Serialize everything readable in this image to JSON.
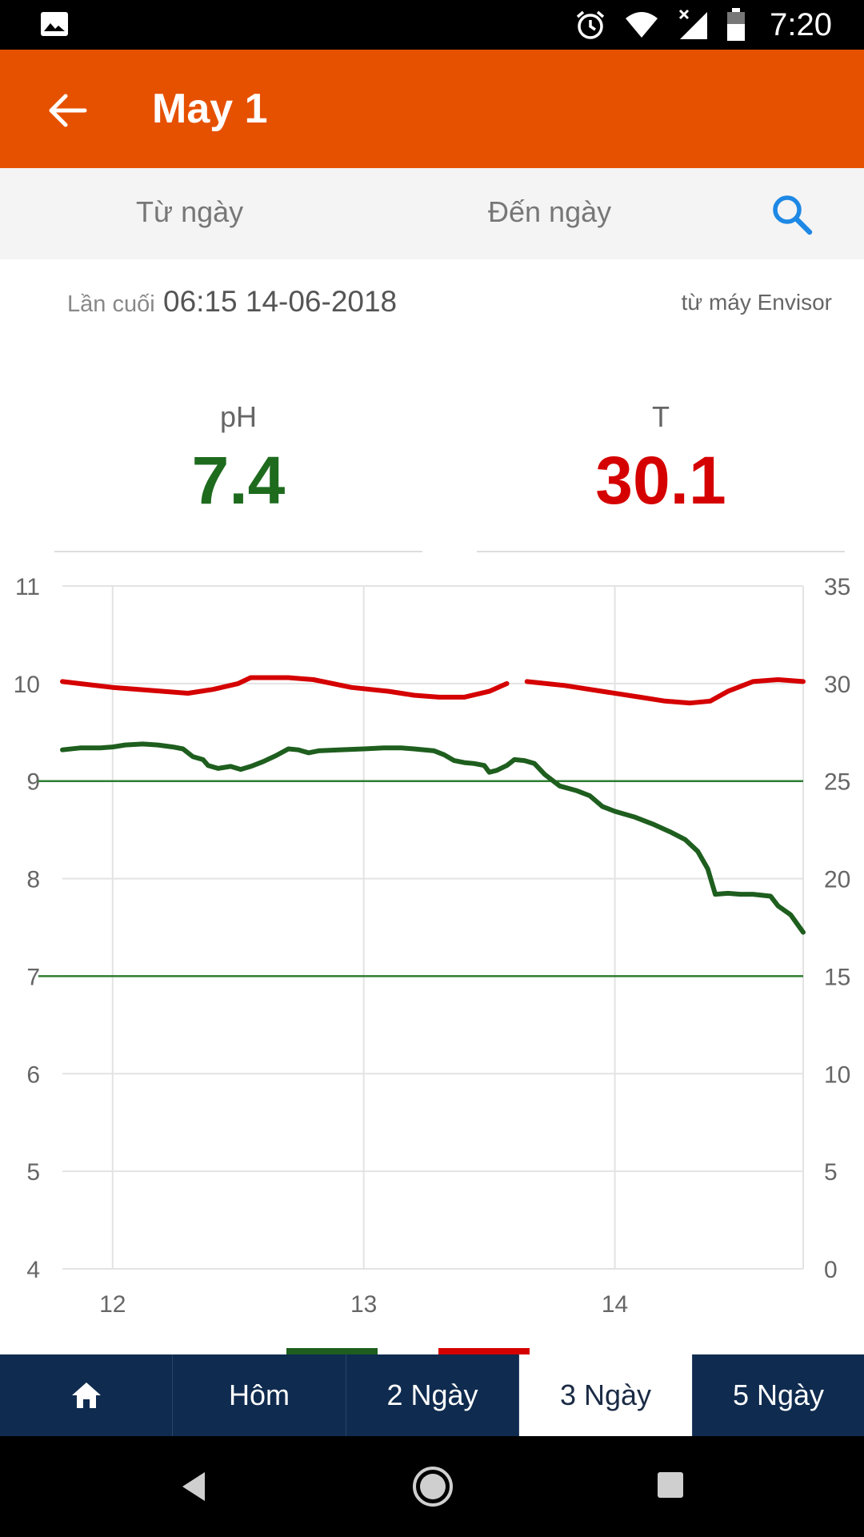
{
  "status_bar": {
    "time": "7:20",
    "icons": [
      "image-icon",
      "alarm-icon",
      "wifi-icon",
      "signal-icon",
      "battery-icon"
    ]
  },
  "app_bar": {
    "title": "May 1",
    "back_icon": "arrow-back-icon"
  },
  "filter": {
    "from_label": "Từ ngày",
    "to_label": "Đến ngày",
    "search_icon": "search-icon"
  },
  "last_reading": {
    "label": "Lần cuối",
    "value": "06:15 14-06-2018",
    "source": "từ máy Envisor"
  },
  "metrics": {
    "ph": {
      "name": "pH",
      "value": "7.4",
      "color": "#1e6b1e"
    },
    "t": {
      "name": "T",
      "value": "30.1",
      "color": "#d50000"
    }
  },
  "chart_data": {
    "type": "line",
    "x_ticks": [
      12,
      13,
      14
    ],
    "xlim": [
      11.8,
      14.75
    ],
    "y_left": {
      "ticks": [
        4,
        5,
        6,
        7,
        8,
        9,
        10,
        11
      ],
      "lim": [
        4,
        11
      ]
    },
    "y_right": {
      "ticks": [
        0,
        5,
        10,
        15,
        20,
        25,
        30,
        35
      ],
      "lim": [
        0,
        35
      ]
    },
    "grid": true,
    "reference_lines_ph": [
      7,
      9
    ],
    "series": [
      {
        "axis": "left",
        "color": "#1e5e1e",
        "points": [
          [
            11.8,
            9.32
          ],
          [
            11.87,
            9.34
          ],
          [
            11.95,
            9.34
          ],
          [
            12.0,
            9.35
          ],
          [
            12.05,
            9.37
          ],
          [
            12.12,
            9.38
          ],
          [
            12.18,
            9.37
          ],
          [
            12.24,
            9.35
          ],
          [
            12.28,
            9.33
          ],
          [
            12.32,
            9.25
          ],
          [
            12.36,
            9.22
          ],
          [
            12.38,
            9.16
          ],
          [
            12.42,
            9.13
          ],
          [
            12.47,
            9.15
          ],
          [
            12.51,
            9.12
          ],
          [
            12.55,
            9.15
          ],
          [
            12.6,
            9.2
          ],
          [
            12.65,
            9.26
          ],
          [
            12.7,
            9.33
          ],
          [
            12.74,
            9.32
          ],
          [
            12.78,
            9.29
          ],
          [
            12.82,
            9.31
          ],
          [
            12.9,
            9.32
          ],
          [
            13.0,
            9.33
          ],
          [
            13.08,
            9.34
          ],
          [
            13.15,
            9.34
          ],
          [
            13.2,
            9.33
          ],
          [
            13.28,
            9.31
          ],
          [
            13.32,
            9.27
          ],
          [
            13.36,
            9.21
          ],
          [
            13.4,
            9.19
          ],
          [
            13.44,
            9.18
          ],
          [
            13.48,
            9.16
          ],
          [
            13.5,
            9.09
          ],
          [
            13.53,
            9.11
          ],
          [
            13.57,
            9.16
          ],
          [
            13.6,
            9.22
          ],
          [
            13.64,
            9.21
          ],
          [
            13.68,
            9.18
          ],
          [
            13.72,
            9.07
          ],
          [
            13.78,
            8.95
          ],
          [
            13.85,
            8.9
          ],
          [
            13.9,
            8.85
          ],
          [
            13.95,
            8.74
          ],
          [
            14.0,
            8.69
          ],
          [
            14.08,
            8.63
          ],
          [
            14.15,
            8.56
          ],
          [
            14.22,
            8.48
          ],
          [
            14.28,
            8.4
          ],
          [
            14.33,
            8.28
          ],
          [
            14.37,
            8.1
          ],
          [
            14.4,
            7.84
          ],
          [
            14.45,
            7.85
          ],
          [
            14.5,
            7.84
          ],
          [
            14.55,
            7.84
          ],
          [
            14.62,
            7.82
          ],
          [
            14.65,
            7.72
          ],
          [
            14.7,
            7.63
          ],
          [
            14.75,
            7.45
          ]
        ]
      },
      {
        "axis": "right",
        "color": "#d50000",
        "segments": [
          [
            [
              11.8,
              30.1
            ],
            [
              12.0,
              29.8
            ],
            [
              12.3,
              29.5
            ],
            [
              12.4,
              29.7
            ],
            [
              12.5,
              30.0
            ],
            [
              12.55,
              30.3
            ],
            [
              12.7,
              30.3
            ],
            [
              12.8,
              30.2
            ],
            [
              12.95,
              29.8
            ],
            [
              13.1,
              29.6
            ],
            [
              13.2,
              29.4
            ],
            [
              13.3,
              29.3
            ],
            [
              13.4,
              29.3
            ],
            [
              13.5,
              29.6
            ],
            [
              13.57,
              30.0
            ]
          ],
          [
            [
              13.65,
              30.1
            ],
            [
              13.8,
              29.9
            ],
            [
              13.95,
              29.6
            ],
            [
              14.1,
              29.3
            ],
            [
              14.2,
              29.1
            ],
            [
              14.3,
              29.0
            ],
            [
              14.38,
              29.1
            ],
            [
              14.45,
              29.6
            ],
            [
              14.55,
              30.1
            ],
            [
              14.65,
              30.2
            ],
            [
              14.75,
              30.1
            ]
          ]
        ]
      }
    ]
  },
  "bottom_nav": {
    "home_icon": "home-icon",
    "tabs": [
      "Hôm",
      "2 Ngày",
      "3 Ngày",
      "5 Ngày"
    ],
    "active_index": 2
  },
  "system_nav": [
    "back-triangle-icon",
    "home-circle-icon",
    "recents-square-icon"
  ]
}
